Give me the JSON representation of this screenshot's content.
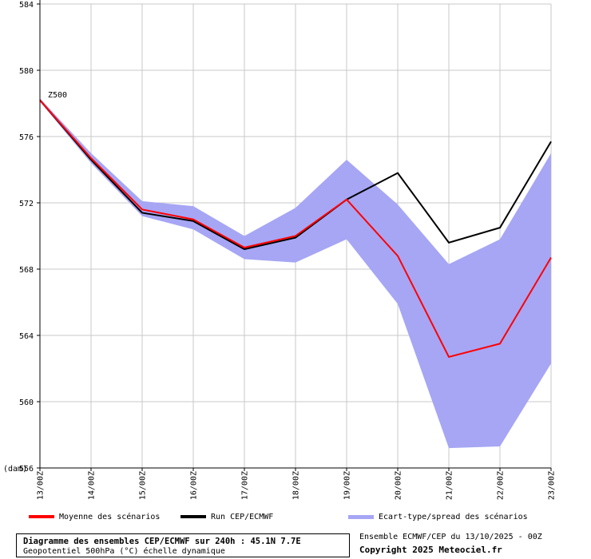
{
  "chart_data": {
    "type": "line",
    "x": [
      "13/00Z",
      "14/00Z",
      "15/00Z",
      "16/00Z",
      "17/00Z",
      "18/00Z",
      "19/00Z",
      "20/00Z",
      "21/00Z",
      "22/00Z",
      "23/00Z"
    ],
    "yticks": [
      "584",
      "580",
      "576",
      "572",
      "568",
      "564",
      "560",
      "556"
    ],
    "ylim": [
      556,
      584
    ],
    "unit_label": "(dam)",
    "variable_label": "Z500",
    "grid": true,
    "series": [
      {
        "name": "Moyenne des scénarios",
        "color": "#ff0000",
        "values": [
          578.2,
          574.7,
          571.6,
          571.0,
          569.3,
          570.0,
          572.2,
          568.8,
          562.7,
          563.5,
          568.7
        ]
      },
      {
        "name": "Run CEP/ECMWF",
        "color": "#000000",
        "values": [
          578.2,
          574.6,
          571.4,
          570.9,
          569.2,
          569.9,
          572.2,
          573.8,
          569.6,
          570.5,
          575.7
        ]
      }
    ],
    "spread": {
      "name": "Ecart-type/spread des scénarios",
      "color": "#a6a6f5",
      "upper": [
        578.3,
        575.0,
        572.1,
        571.8,
        570.0,
        571.7,
        574.6,
        571.9,
        568.3,
        569.8,
        575.0
      ],
      "lower": [
        578.1,
        574.4,
        571.2,
        570.4,
        568.6,
        568.4,
        569.8,
        565.9,
        557.2,
        557.3,
        562.3
      ]
    }
  },
  "legend": {
    "mean_label": "Moyenne des scénarios",
    "run_label": "Run CEP/ECMWF",
    "spread_label": "Ecart-type/spread des scénarios"
  },
  "caption": {
    "title": "Diagramme des ensembles CEP/ECMWF sur 240h : 45.1N 7.7E",
    "subtitle": "Geopotentiel 500hPa (°C) échelle dynamique"
  },
  "info": {
    "run": "Ensemble ECMWF/CEP du 13/10/2025 - 00Z",
    "copyright": "Copyright 2025 Meteociel.fr"
  }
}
